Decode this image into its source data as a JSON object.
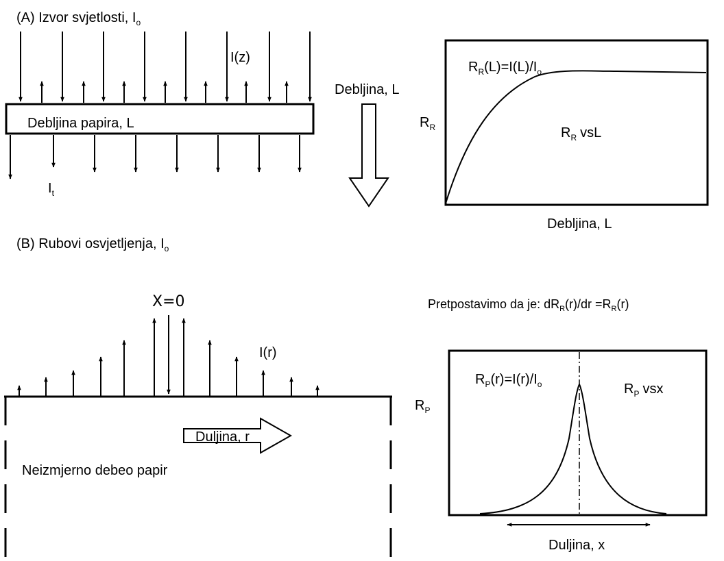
{
  "panel_a": {
    "title": "(A) Izvor svjetlosti, I",
    "title_sub": "o",
    "iz_label": "I(z)",
    "paper_label": "Debljina papira, L",
    "it_label": "I",
    "it_sub": "t",
    "thickness_arrow_label": "Debljina, L"
  },
  "graph_a": {
    "ylabel": "R",
    "ylabel_sub": "R",
    "xlabel": "Debljina, L",
    "formula_r": "R",
    "formula_r_sub": "R",
    "formula_mid": "(L)=I(L)/I",
    "formula_end_sub": "o",
    "vs_r": "R",
    "vs_sub": "R",
    "vs_text": "vsL"
  },
  "panel_b": {
    "title": "(B) Rubovi osvjetljenja, I",
    "title_sub": "o",
    "x0_label": "X=0",
    "ir_label": "I(r)",
    "length_arrow_label": "Duljina, r",
    "paper_label": "Neizmjerno debeo papir"
  },
  "assumption": {
    "prefix": "Pretpostavimo da je: dR",
    "sub1": "R",
    "mid": "(r)/dr =R",
    "sub2": "R",
    "end": "(r)"
  },
  "graph_b": {
    "ylabel": "R",
    "ylabel_sub": "P",
    "xlabel": "Duljina, x",
    "formula_r": "R",
    "formula_r_sub": "P",
    "formula_mid": "(r)=I(r)/I",
    "formula_end_sub": "o",
    "vs_r": "R",
    "vs_sub": "P",
    "vs_text": "vsx"
  }
}
